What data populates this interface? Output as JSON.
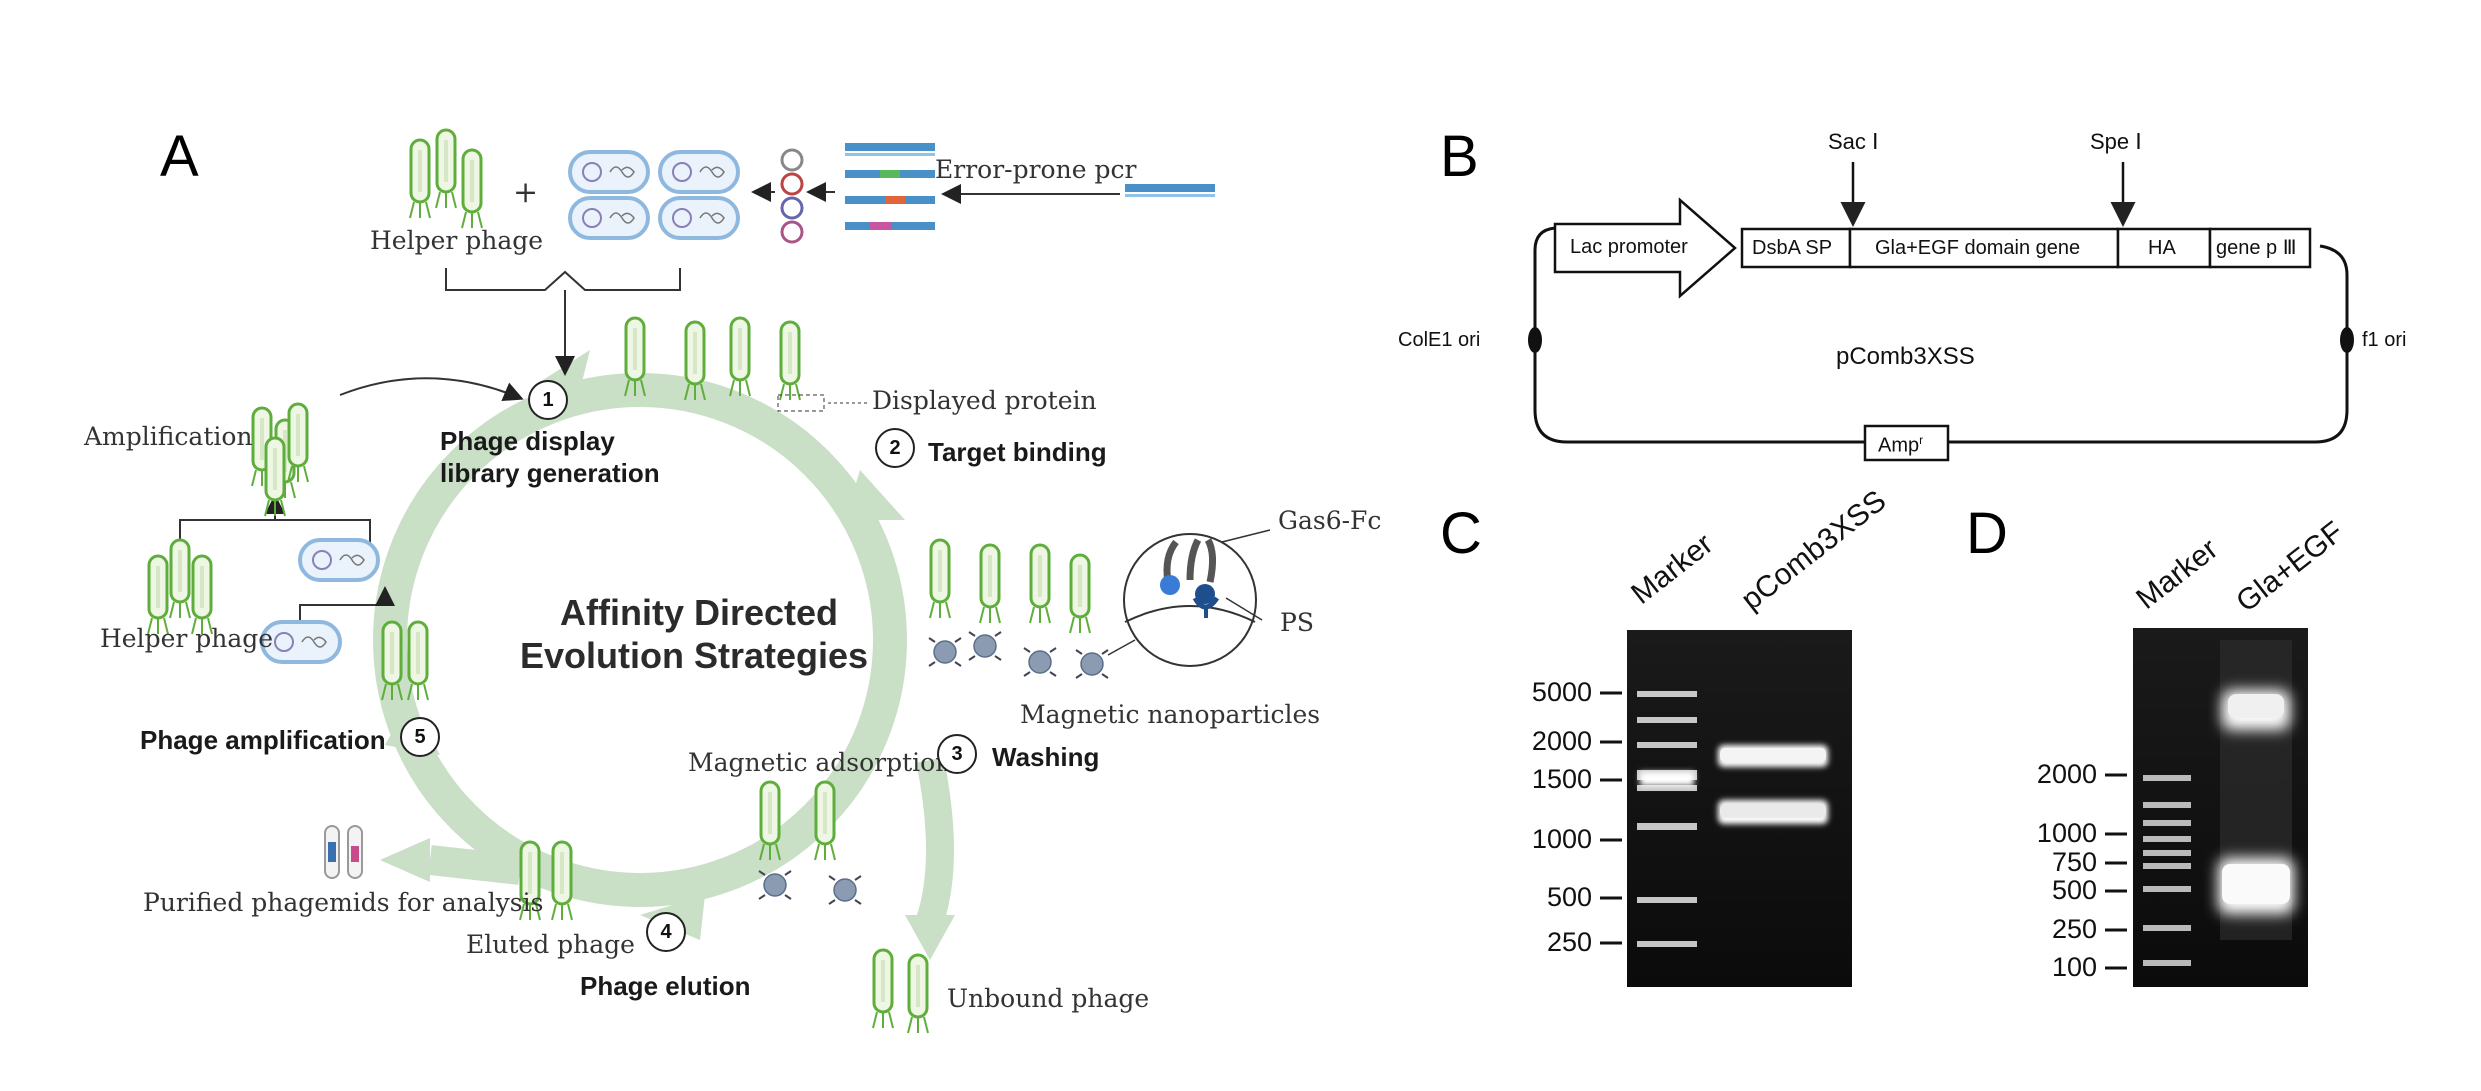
{
  "panel_a": {
    "letter": "A",
    "labels": {
      "helper_phage_top": "Helper phage",
      "error_prone_pcr": "Error-prone pcr",
      "displayed_protein": "Displayed protein",
      "amplification": "Amplification",
      "helper_phage_left": "Helper phage",
      "gas6_fc": "Gas6-Fc",
      "ps": "PS",
      "magnetic_nanoparticles": "Magnetic nanoparticles",
      "magnetic_adsorption": "Magnetic adsorption",
      "purified_phagemids": "Purified phagemids for analysis",
      "eluted_phage": "Eluted phage",
      "unbound_phage": "Unbound phage",
      "plus": "+"
    },
    "center_title": [
      "Affinity  Directed",
      "Evolution  Strategies"
    ],
    "steps": [
      {
        "num": "1",
        "title": [
          "Phage display",
          "library generation"
        ]
      },
      {
        "num": "2",
        "title": [
          "Target binding"
        ]
      },
      {
        "num": "3",
        "title": [
          "Washing"
        ]
      },
      {
        "num": "4",
        "title": [
          "Phage elution"
        ]
      },
      {
        "num": "5",
        "title": [
          "Phage amplification"
        ]
      }
    ],
    "colors": {
      "cycle_arrow": "#c9dfc6",
      "phage_green": "#5fae3c",
      "cell_blue": "#8fb8df"
    }
  },
  "panel_b": {
    "letter": "B",
    "plasmid_name": "pComb3XSS",
    "restriction_sites": [
      "Sac Ⅰ",
      "Spe Ⅰ"
    ],
    "promoter": "Lac promoter",
    "segments": [
      "DsbA SP",
      "Gla+EGF domain gene",
      "HA",
      "gene p Ⅲ"
    ],
    "origins": [
      "ColE1 ori",
      "f1 ori"
    ],
    "resistance": "Amp",
    "resistance_sup": "r"
  },
  "panel_c": {
    "letter": "C",
    "lanes": [
      "Marker",
      "pComb3XSS"
    ],
    "ladder": [
      "5000",
      "2000",
      "1500",
      "1000",
      "500",
      "250"
    ]
  },
  "panel_d": {
    "letter": "D",
    "lanes": [
      "Marker",
      "Gla+EGF"
    ],
    "ladder": [
      "2000",
      "1000",
      "750",
      "500",
      "250",
      "100"
    ]
  }
}
